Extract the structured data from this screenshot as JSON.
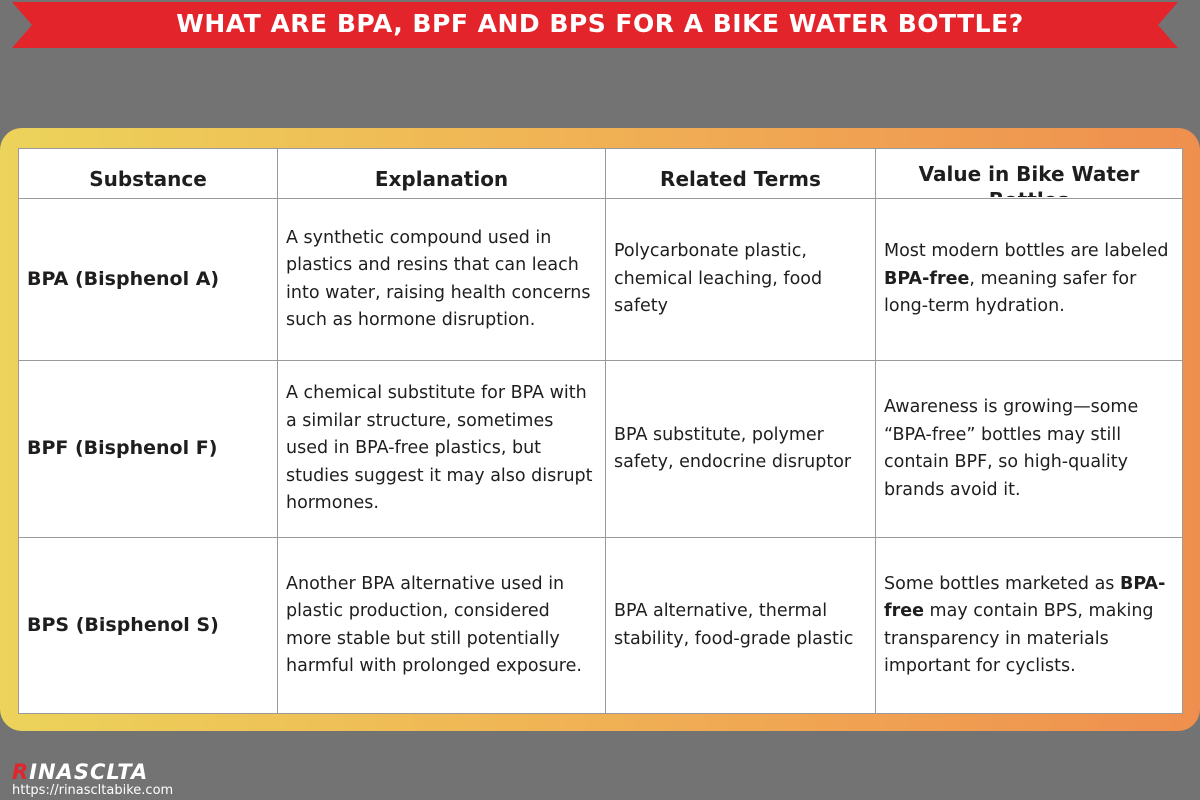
{
  "header": {
    "title": "WHAT ARE BPA, BPF AND BPS FOR A BIKE WATER BOTTLE?"
  },
  "table": {
    "columns": [
      "Substance",
      "Explanation",
      "Related Terms",
      "Value in Bike Water Bottles"
    ],
    "rows": [
      [
        "BPA (Bisphenol A)",
        "A synthetic compound used in plastics and resins that can leach into water, raising health concerns such as hormone disruption.",
        "Polycarbonate plastic, chemical leaching, food safety",
        [
          {
            "text": "Most modern bottles are labeled ",
            "bold": false
          },
          {
            "text": "BPA-free",
            "bold": true
          },
          {
            "text": ", meaning safer for long-term hydration.",
            "bold": false
          }
        ]
      ],
      [
        "BPF (Bisphenol F)",
        "A chemical substitute for BPA with a similar structure, sometimes used in BPA-free plastics, but studies suggest it may also disrupt hormones.",
        "BPA substitute, polymer safety, endocrine disruptor",
        "Awareness is growing—some “BPA-free” bottles may still contain BPF, so high-quality brands avoid it."
      ],
      [
        "BPS (Bisphenol S)",
        "Another BPA alternative used in plastic production, considered more stable but still potentially harmful with prolonged exposure.",
        "BPA alternative, thermal stability, food-grade plastic",
        [
          {
            "text": "Some bottles marketed as ",
            "bold": false
          },
          {
            "text": "BPA-free",
            "bold": true
          },
          {
            "text": " may contain BPS, making transparency in materials important for cyclists.",
            "bold": false
          }
        ]
      ]
    ]
  },
  "footer": {
    "brand_initial": "R",
    "brand_rest": "INASCLTA",
    "url": "https://rinascltabike.com"
  }
}
